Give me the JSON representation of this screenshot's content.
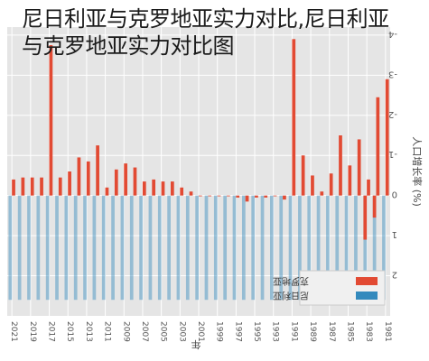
{
  "overlay_title": {
    "line1": "尼日利亚与克罗地亚实力对比,尼日利亚",
    "line2": "与克罗地亚实力对比图"
  },
  "chart_data": {
    "type": "bar",
    "orientation": "rotated-180",
    "xlabel": "年",
    "ylabel": "人口增长率 (%)",
    "ylim": [
      -4.2,
      3
    ],
    "yticks": [
      -4,
      -3,
      -2,
      -1,
      0,
      1,
      2
    ],
    "grid": true,
    "legend_position": "bottom-right",
    "colors": {
      "background": "#e5e5e5",
      "grid": "#ffffff",
      "series_a": "#e24a33",
      "series_b": "#348abd"
    },
    "categories": [
      "1981",
      "1982",
      "1983",
      "1984",
      "1985",
      "1986",
      "1987",
      "1988",
      "1989",
      "1990",
      "1991",
      "1992",
      "1993",
      "1994",
      "1995",
      "1996",
      "1997",
      "1998",
      "1999",
      "2000",
      "2001",
      "2002",
      "2003",
      "2004",
      "2005",
      "2006",
      "2007",
      "2008",
      "2009",
      "2010",
      "2011",
      "2012",
      "2013",
      "2014",
      "2015",
      "2016",
      "2017",
      "2018",
      "2019",
      "2020",
      "2021"
    ],
    "tick_labels": [
      "1981",
      "1983",
      "1985",
      "1987",
      "1989",
      "1991",
      "1993",
      "1995",
      "1997",
      "1999",
      "2001",
      "2003",
      "2005",
      "2007",
      "2009",
      "2011",
      "2013",
      "2015",
      "2017",
      "2019",
      "2021"
    ],
    "series": [
      {
        "name": "克罗地亚",
        "values": [
          -2.9,
          -2.45,
          -0.4,
          -1.4,
          -0.75,
          -1.5,
          -0.55,
          -0.1,
          -0.5,
          -1.0,
          -3.9,
          0.1,
          0.0,
          0.05,
          0.05,
          0.15,
          0.05,
          0.0,
          0.0,
          0.0,
          0.0,
          -0.1,
          -0.2,
          -0.35,
          -0.35,
          -0.4,
          -0.35,
          -0.7,
          -0.8,
          -0.65,
          -0.2,
          -1.25,
          -0.85,
          -0.95,
          -0.6,
          -0.45,
          -3.75,
          -0.45,
          -0.45,
          -0.45,
          -0.4
        ]
      },
      {
        "name": "尼日利亚",
        "values": [
          2.6,
          2.6,
          2.6,
          2.6,
          2.6,
          2.6,
          2.6,
          2.6,
          2.6,
          2.6,
          2.6,
          2.6,
          2.6,
          2.6,
          2.6,
          2.6,
          2.6,
          2.6,
          2.6,
          2.6,
          2.6,
          2.6,
          2.6,
          2.6,
          2.6,
          2.6,
          2.6,
          2.6,
          2.6,
          2.6,
          2.6,
          2.6,
          2.6,
          2.6,
          2.6,
          2.6,
          2.6,
          2.6,
          2.6,
          2.6,
          2.6
        ]
      }
    ],
    "visible_bar_values": [
      0,
      0.55,
      1.1,
      0,
      0,
      0,
      0,
      0,
      0,
      0,
      0,
      0,
      0,
      0,
      0,
      0,
      0,
      0,
      0,
      0,
      0,
      0,
      0,
      0,
      0,
      0,
      0,
      0,
      0,
      0,
      0,
      0,
      0,
      0,
      0,
      0,
      0,
      0,
      0,
      0,
      0
    ]
  }
}
